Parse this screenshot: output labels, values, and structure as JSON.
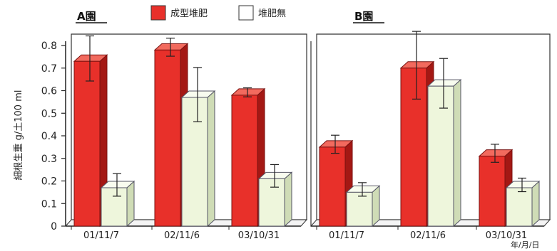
{
  "chart_data": {
    "type": "bar",
    "ylabel": "細根生重 g/土100 ml",
    "xunit": "年/月/日",
    "ylim": [
      0,
      0.8
    ],
    "yticks": [
      "0",
      "0.1",
      "0.2",
      "0.3",
      "0.4",
      "0.5",
      "0.6",
      "0.7",
      "0.8"
    ],
    "legend": [
      {
        "label": "成型堆肥",
        "color": "#e8302a"
      },
      {
        "label": "堆肥無",
        "color": "#eef6dc"
      }
    ],
    "panels": [
      {
        "title": "A園",
        "categories": [
          "01/11/7",
          "02/11/6",
          "03/10/31"
        ],
        "series": [
          {
            "name": "成型堆肥",
            "values": [
              0.73,
              0.78,
              0.58
            ],
            "err": [
              0.1,
              0.04,
              0.02
            ]
          },
          {
            "name": "堆肥無",
            "values": [
              0.17,
              0.57,
              0.21
            ],
            "err": [
              0.05,
              0.12,
              0.05
            ]
          }
        ]
      },
      {
        "title": "B園",
        "categories": [
          "01/11/7",
          "02/11/6",
          "03/10/31"
        ],
        "series": [
          {
            "name": "成型堆肥",
            "values": [
              0.35,
              0.7,
              0.31
            ],
            "err": [
              0.04,
              0.15,
              0.04
            ]
          },
          {
            "name": "堆肥無",
            "values": [
              0.15,
              0.62,
              0.17
            ],
            "err": [
              0.03,
              0.11,
              0.03
            ]
          }
        ]
      }
    ]
  }
}
